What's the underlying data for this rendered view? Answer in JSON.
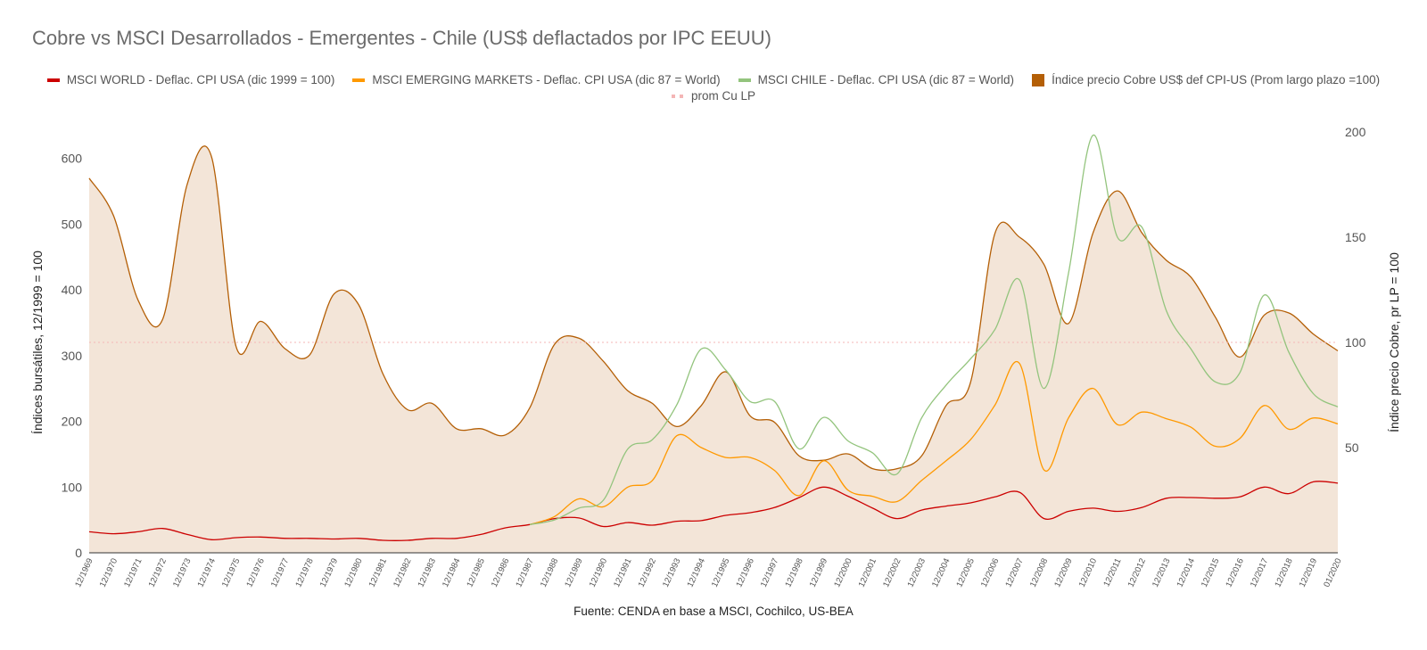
{
  "title": "Cobre vs MSCI Desarrollados - Emergentes - Chile (US$ deflactados por IPC EEUU)",
  "source": "Fuente: CENDA en base a MSCI, Cochilco, US-BEA",
  "chart_data": {
    "type": "line",
    "title": "Cobre vs MSCI Desarrollados - Emergentes - Chile (US$ deflactados por IPC EEUU)",
    "ylabel": "Índices bursátiles, 12/1999 = 100",
    "y2label": "Índice precio Cobre, pr LP = 100",
    "ylim": [
      0,
      640
    ],
    "y2lim": [
      0,
      200
    ],
    "yticks": [
      "0",
      "100",
      "200",
      "300",
      "400",
      "500",
      "600"
    ],
    "y2ticks": [
      "50",
      "100",
      "150",
      "200"
    ],
    "grid": false,
    "legend_position": "top",
    "categories": [
      "12/1969",
      "12/1970",
      "12/1971",
      "12/1972",
      "12/1973",
      "12/1974",
      "12/1975",
      "12/1976",
      "12/1977",
      "12/1978",
      "12/1979",
      "12/1980",
      "12/1981",
      "12/1982",
      "12/1983",
      "12/1984",
      "12/1985",
      "12/1986",
      "12/1987",
      "12/1988",
      "12/1989",
      "12/1990",
      "12/1991",
      "12/1992",
      "12/1993",
      "12/1994",
      "12/1995",
      "12/1996",
      "12/1997",
      "12/1998",
      "12/1999",
      "12/2000",
      "12/2001",
      "12/2002",
      "12/2003",
      "12/2004",
      "12/2005",
      "12/2006",
      "12/2007",
      "12/2008",
      "12/2009",
      "12/2010",
      "12/2011",
      "12/2012",
      "12/2013",
      "12/2014",
      "12/2015",
      "12/2016",
      "12/2017",
      "12/2018",
      "12/2019",
      "01/2020"
    ],
    "series": [
      {
        "name": "Índice precio Cobre US$ def CPI-US (Prom largo plazo =100)",
        "axis": "right",
        "color": "#b45f06",
        "fill": "#f3e5d8",
        "style": "area",
        "values": [
          178,
          160,
          120,
          111,
          175,
          188,
          98,
          110,
          97,
          94,
          123,
          118,
          85,
          68,
          71,
          59,
          59,
          56,
          69,
          99,
          102,
          91,
          77,
          71,
          60,
          70,
          86,
          65,
          62,
          46,
          44,
          47,
          40,
          40,
          46,
          70,
          81,
          152,
          150,
          137,
          109,
          152,
          172,
          152,
          139,
          131,
          112,
          93,
          113,
          114,
          104,
          96
        ]
      },
      {
        "name": "prom Cu LP",
        "axis": "right",
        "color": "#f4b6b6",
        "style": "dashed",
        "values": [
          100,
          100,
          100,
          100,
          100,
          100,
          100,
          100,
          100,
          100,
          100,
          100,
          100,
          100,
          100,
          100,
          100,
          100,
          100,
          100,
          100,
          100,
          100,
          100,
          100,
          100,
          100,
          100,
          100,
          100,
          100,
          100,
          100,
          100,
          100,
          100,
          100,
          100,
          100,
          100,
          100,
          100,
          100,
          100,
          100,
          100,
          100,
          100,
          100,
          100,
          100,
          100
        ]
      },
      {
        "name": "MSCI WORLD - Deflac. CPI USA (dic 1999 = 100)",
        "axis": "left",
        "color": "#cc0000",
        "style": "line",
        "values": [
          32,
          29,
          32,
          37,
          28,
          20,
          23,
          24,
          22,
          22,
          21,
          22,
          19,
          19,
          22,
          22,
          28,
          38,
          43,
          52,
          53,
          40,
          46,
          42,
          48,
          49,
          57,
          61,
          69,
          84,
          100,
          86,
          68,
          52,
          65,
          71,
          76,
          85,
          92,
          52,
          63,
          68,
          63,
          69,
          83,
          84,
          83,
          85,
          100,
          90,
          108,
          106
        ]
      },
      {
        "name": "MSCI EMERGING MARKETS - Deflac. CPI USA (dic 87 = World)",
        "axis": "left",
        "color": "#ff9900",
        "style": "line",
        "values": [
          null,
          null,
          null,
          null,
          null,
          null,
          null,
          null,
          null,
          null,
          null,
          null,
          null,
          null,
          null,
          null,
          null,
          null,
          43,
          55,
          82,
          70,
          100,
          110,
          178,
          160,
          145,
          145,
          125,
          87,
          140,
          95,
          86,
          78,
          110,
          140,
          172,
          225,
          288,
          126,
          205,
          250,
          195,
          214,
          204,
          191,
          162,
          174,
          224,
          188,
          205,
          196
        ]
      },
      {
        "name": "MSCI CHILE - Deflac. CPI USA (dic 87 = World)",
        "axis": "left",
        "color": "#93c47d",
        "style": "line",
        "values": [
          null,
          null,
          null,
          null,
          null,
          null,
          null,
          null,
          null,
          null,
          null,
          null,
          null,
          null,
          null,
          null,
          null,
          null,
          43,
          50,
          68,
          80,
          158,
          172,
          225,
          310,
          278,
          230,
          230,
          158,
          206,
          170,
          152,
          120,
          205,
          255,
          295,
          340,
          415,
          250,
          425,
          635,
          480,
          495,
          368,
          310,
          260,
          274,
          392,
          305,
          242,
          222
        ]
      }
    ]
  }
}
